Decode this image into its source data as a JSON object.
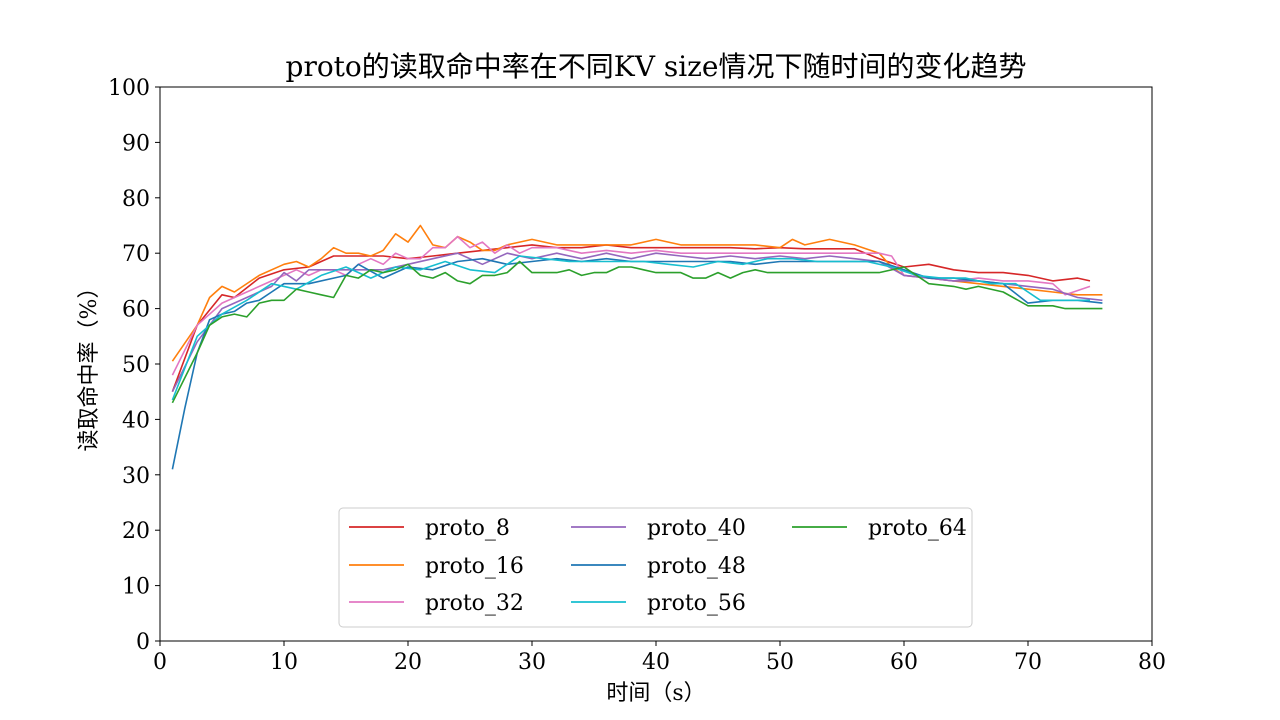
{
  "chart_data": {
    "type": "line",
    "title": "proto的读取命中率在不同KV size情况下随时间的变化趋势",
    "xlabel": "时间（s）",
    "ylabel": "读取命中率（%）",
    "xlim": [
      0,
      80
    ],
    "ylim": [
      0,
      100
    ],
    "xticks": [
      "0",
      "10",
      "20",
      "30",
      "40",
      "50",
      "60",
      "70",
      "80"
    ],
    "yticks": [
      "0",
      "10",
      "20",
      "30",
      "40",
      "50",
      "60",
      "70",
      "80",
      "90",
      "100"
    ],
    "grid": false,
    "legend_position": "lower-center",
    "series": [
      {
        "name": "proto_8",
        "color": "#d62728",
        "x": [
          1,
          3,
          5,
          6,
          8,
          10,
          12,
          14,
          16,
          18,
          20,
          22,
          24,
          26,
          28,
          30,
          32,
          34,
          36,
          38,
          40,
          42,
          44,
          46,
          48,
          50,
          52,
          54,
          56,
          58,
          60,
          62,
          64,
          66,
          68,
          70,
          72,
          74,
          75
        ],
        "y": [
          45,
          57,
          62.5,
          62,
          65.5,
          67,
          67.5,
          69.5,
          69.5,
          69.5,
          69,
          69.5,
          70,
          70.5,
          71,
          71.5,
          71,
          71,
          71.5,
          71,
          71,
          71,
          71,
          71,
          70.8,
          71,
          70.8,
          70.8,
          70.8,
          69,
          67.5,
          68,
          67,
          66.5,
          66.5,
          66,
          65,
          65.5,
          65
        ]
      },
      {
        "name": "proto_16",
        "color": "#ff7f0e",
        "x": [
          1,
          3,
          4,
          5,
          6,
          8,
          10,
          11,
          12,
          13,
          14,
          15,
          16,
          17,
          18,
          19,
          20,
          21,
          22,
          23,
          24,
          25,
          26,
          27,
          28,
          29,
          30,
          31,
          32,
          34,
          36,
          38,
          40,
          42,
          44,
          46,
          48,
          50,
          51,
          52,
          54,
          56,
          58,
          59,
          60,
          62,
          64,
          66,
          68,
          70,
          72,
          74,
          76
        ],
        "y": [
          50.5,
          57,
          62,
          64,
          63,
          66,
          68,
          68.5,
          67.5,
          69,
          71,
          70,
          70,
          69.5,
          70.5,
          73.5,
          72,
          75,
          71.5,
          71,
          73,
          72,
          70.5,
          70.5,
          71.5,
          72,
          72.5,
          72,
          71.5,
          71.5,
          71.5,
          71.5,
          72.5,
          71.5,
          71.5,
          71.5,
          71.5,
          71,
          72.5,
          71.5,
          72.5,
          71.5,
          70,
          67.5,
          66,
          65.5,
          65,
          64.5,
          64,
          63.5,
          63,
          62.5,
          62.5
        ]
      },
      {
        "name": "proto_32",
        "color": "#e377c2",
        "x": [
          1,
          3,
          5,
          7,
          9,
          11,
          12,
          13,
          14,
          15,
          16,
          17,
          18,
          19,
          20,
          21,
          22,
          23,
          24,
          25,
          26,
          27,
          28,
          29,
          30,
          32,
          34,
          36,
          38,
          40,
          42,
          44,
          46,
          48,
          50,
          52,
          54,
          56,
          58,
          59,
          60,
          62,
          64,
          66,
          68,
          70,
          72,
          73,
          75
        ],
        "y": [
          48,
          57,
          61,
          63,
          65,
          67,
          66,
          67,
          67,
          66,
          68,
          69,
          68,
          70,
          69,
          69,
          71,
          71,
          73,
          71,
          72,
          70,
          71.5,
          70,
          71,
          71,
          70,
          70.5,
          70,
          70.5,
          70,
          70,
          70,
          70,
          70,
          70,
          70,
          70,
          70,
          69.5,
          66,
          65.5,
          65,
          65.5,
          65,
          65,
          64.5,
          62.5,
          64
        ]
      },
      {
        "name": "proto_40",
        "color": "#9467bd",
        "x": [
          1,
          3,
          5,
          7,
          9,
          10,
          11,
          12,
          14,
          16,
          18,
          20,
          22,
          24,
          26,
          28,
          30,
          32,
          34,
          36,
          38,
          40,
          42,
          44,
          46,
          48,
          50,
          52,
          54,
          56,
          58,
          60,
          62,
          64,
          66,
          68,
          70,
          72,
          74,
          76
        ],
        "y": [
          45,
          54,
          60,
          62,
          64,
          66.5,
          65,
          67,
          67,
          67,
          67,
          68,
          69,
          70,
          68,
          70,
          69,
          70,
          69,
          70,
          69,
          70,
          69.5,
          69,
          69.5,
          69,
          69.5,
          69,
          69.5,
          69,
          68.5,
          66,
          65.5,
          65,
          65,
          64.5,
          64,
          63.5,
          62,
          61.5
        ]
      },
      {
        "name": "proto_48",
        "color": "#1f77b4",
        "x": [
          1,
          2,
          3,
          4,
          5,
          6,
          7,
          8,
          9,
          10,
          12,
          14,
          15,
          16,
          18,
          20,
          22,
          24,
          26,
          28,
          30,
          32,
          34,
          36,
          38,
          40,
          42,
          44,
          46,
          48,
          50,
          52,
          54,
          56,
          58,
          60,
          62,
          64,
          66,
          68,
          70,
          72,
          74,
          76
        ],
        "y": [
          31,
          42,
          52,
          58,
          59,
          59.5,
          61,
          61.5,
          63,
          64.5,
          64.5,
          65.5,
          66,
          68,
          65.5,
          67.5,
          67,
          68.5,
          69,
          68,
          68.5,
          69,
          68.5,
          69,
          68.5,
          68.5,
          68.5,
          68.5,
          68.5,
          68,
          68.5,
          68.5,
          68.5,
          68.5,
          68.5,
          67,
          65.5,
          65.5,
          65,
          64.5,
          61,
          61.5,
          61.5,
          61
        ]
      },
      {
        "name": "proto_56",
        "color": "#17becf",
        "x": [
          1,
          3,
          5,
          7,
          9,
          11,
          13,
          15,
          17,
          19,
          21,
          23,
          25,
          27,
          29,
          31,
          33,
          35,
          37,
          39,
          41,
          43,
          45,
          47,
          49,
          51,
          53,
          55,
          57,
          59,
          61,
          63,
          65,
          67,
          69,
          71,
          73,
          75
        ],
        "y": [
          43.5,
          55,
          59,
          61.5,
          64.5,
          63.5,
          66,
          67.5,
          65.5,
          67.5,
          67,
          68.5,
          67,
          66.5,
          69.5,
          69,
          68.5,
          68.5,
          68.5,
          68.5,
          68,
          67.5,
          68.5,
          68,
          69,
          69,
          68.5,
          68.5,
          68.5,
          67.5,
          66,
          65.5,
          65.5,
          64.5,
          64.5,
          61.5,
          61.5,
          61.5
        ]
      },
      {
        "name": "proto_64",
        "color": "#2ca02c",
        "x": [
          1,
          3,
          4,
          5,
          6,
          7,
          8,
          9,
          10,
          11,
          12,
          13,
          14,
          15,
          16,
          17,
          18,
          19,
          20,
          21,
          22,
          23,
          24,
          25,
          26,
          27,
          28,
          29,
          30,
          31,
          32,
          33,
          34,
          35,
          36,
          37,
          38,
          39,
          40,
          41,
          42,
          43,
          44,
          45,
          46,
          47,
          48,
          49,
          50,
          52,
          54,
          56,
          58,
          60,
          62,
          64,
          65,
          66,
          68,
          70,
          71,
          72,
          73,
          74,
          76
        ],
        "y": [
          43,
          52,
          57,
          58.5,
          59,
          58.5,
          61,
          61.5,
          61.5,
          63.5,
          63,
          62.5,
          62,
          66,
          65.5,
          67,
          66.5,
          67,
          68,
          66,
          65.5,
          66.5,
          65,
          64.5,
          66,
          66,
          66.5,
          68.5,
          66.5,
          66.5,
          66.5,
          67,
          66,
          66.5,
          66.5,
          67.5,
          67.5,
          67,
          66.5,
          66.5,
          66.5,
          65.5,
          65.5,
          66.5,
          65.5,
          66.5,
          67,
          66.5,
          66.5,
          66.5,
          66.5,
          66.5,
          66.5,
          67.5,
          64.5,
          64,
          63.5,
          64,
          63,
          60.5,
          60.5,
          60.5,
          60,
          60,
          60
        ]
      }
    ]
  }
}
